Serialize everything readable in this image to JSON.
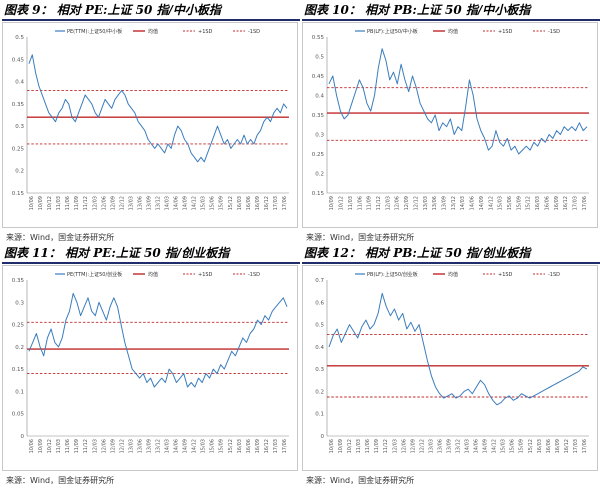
{
  "colors": {
    "series": "#3b7dbd",
    "mean": "#c0282a",
    "band": "#c0282a",
    "title_rule": "#1f2d6b"
  },
  "legend_labels": {
    "mean": "均值",
    "plus": "+1SD",
    "minus": "-1SD"
  },
  "panels": [
    {
      "title": "图表 9：  相对 PE:上证 50 指/中小板指",
      "source": "来源：Wind，国金证券研究所"
    },
    {
      "title": "图表 10：  相对 PB:上证 50 指/中小板指",
      "source": "来源：Wind，国金证券研究所"
    },
    {
      "title": "图表 11：  相对 PE:上证 50 指/创业板指",
      "source": "来源：Wind，国金证券研究所"
    },
    {
      "title": "图表 12：  相对 PB:上证 50 指/创业板指",
      "source": "来源：Wind，国金证券研究所"
    }
  ],
  "chart_data": [
    {
      "type": "line",
      "series_name": "PE(TTM):上证50/中小板",
      "ylim": [
        0.15,
        0.5
      ],
      "yticks": [
        "0.15",
        "0.2",
        "0.25",
        "0.3",
        "0.35",
        "0.4",
        "0.45",
        "0.5"
      ],
      "xticks": [
        "10/06",
        "10/09",
        "10/12",
        "11/03",
        "11/06",
        "11/09",
        "11/12",
        "12/03",
        "12/06",
        "12/09",
        "12/12",
        "13/03",
        "13/06",
        "13/09",
        "13/12",
        "14/03",
        "14/06",
        "14/09",
        "14/12",
        "15/03",
        "15/06",
        "15/09",
        "15/12",
        "16/03",
        "16/06",
        "16/09",
        "16/12",
        "17/03",
        "17/06"
      ],
      "mean": 0.32,
      "plus_sd": 0.38,
      "minus_sd": 0.26,
      "values": [
        0.44,
        0.46,
        0.42,
        0.39,
        0.37,
        0.35,
        0.33,
        0.32,
        0.31,
        0.33,
        0.34,
        0.36,
        0.35,
        0.32,
        0.31,
        0.33,
        0.35,
        0.37,
        0.36,
        0.35,
        0.33,
        0.32,
        0.34,
        0.36,
        0.35,
        0.34,
        0.36,
        0.37,
        0.38,
        0.37,
        0.35,
        0.34,
        0.33,
        0.31,
        0.3,
        0.29,
        0.27,
        0.26,
        0.25,
        0.26,
        0.25,
        0.24,
        0.26,
        0.25,
        0.28,
        0.3,
        0.29,
        0.27,
        0.26,
        0.24,
        0.23,
        0.22,
        0.23,
        0.22,
        0.24,
        0.26,
        0.28,
        0.3,
        0.28,
        0.26,
        0.27,
        0.25,
        0.26,
        0.27,
        0.26,
        0.28,
        0.26,
        0.27,
        0.26,
        0.28,
        0.29,
        0.31,
        0.32,
        0.31,
        0.33,
        0.34,
        0.33,
        0.35,
        0.34
      ]
    },
    {
      "type": "line",
      "series_name": "PB(LF):上证50/中小板",
      "ylim": [
        0.15,
        0.55
      ],
      "yticks": [
        "0.15",
        "0.2",
        "0.25",
        "0.3",
        "0.35",
        "0.4",
        "0.45",
        "0.5",
        "0.55"
      ],
      "xticks": [
        "10/09",
        "10/12",
        "11/03",
        "11/06",
        "11/09",
        "11/12",
        "12/03",
        "12/06",
        "12/09",
        "12/12",
        "13/03",
        "13/06",
        "13/09",
        "13/12",
        "14/03",
        "14/06",
        "14/09",
        "14/12",
        "15/03",
        "15/06",
        "15/09",
        "15/12",
        "16/03",
        "16/06",
        "16/09",
        "16/12",
        "17/03",
        "17/06"
      ],
      "mean": 0.355,
      "plus_sd": 0.42,
      "minus_sd": 0.285,
      "values": [
        0.43,
        0.45,
        0.4,
        0.36,
        0.34,
        0.35,
        0.38,
        0.41,
        0.44,
        0.42,
        0.38,
        0.36,
        0.4,
        0.47,
        0.52,
        0.49,
        0.44,
        0.46,
        0.43,
        0.48,
        0.44,
        0.41,
        0.45,
        0.42,
        0.38,
        0.36,
        0.34,
        0.33,
        0.35,
        0.31,
        0.33,
        0.32,
        0.34,
        0.3,
        0.32,
        0.31,
        0.37,
        0.44,
        0.4,
        0.34,
        0.31,
        0.29,
        0.26,
        0.27,
        0.31,
        0.28,
        0.27,
        0.29,
        0.26,
        0.27,
        0.25,
        0.26,
        0.27,
        0.26,
        0.28,
        0.27,
        0.29,
        0.28,
        0.3,
        0.29,
        0.31,
        0.3,
        0.32,
        0.31,
        0.32,
        0.31,
        0.33,
        0.31,
        0.32
      ]
    },
    {
      "type": "line",
      "series_name": "PE(TTM):上证50/创业板",
      "ylim": [
        0.0,
        0.35
      ],
      "yticks": [
        "0",
        "0.05",
        "0.1",
        "0.15",
        "0.2",
        "0.25",
        "0.3",
        "0.35"
      ],
      "xticks": [
        "10/06",
        "10/09",
        "10/12",
        "11/03",
        "11/06",
        "11/09",
        "11/12",
        "12/03",
        "12/06",
        "12/09",
        "12/12",
        "13/03",
        "13/06",
        "13/09",
        "13/12",
        "14/03",
        "14/06",
        "14/09",
        "14/12",
        "15/03",
        "15/06",
        "15/09",
        "15/12",
        "16/03",
        "16/06",
        "16/09",
        "16/12",
        "17/03",
        "17/06"
      ],
      "mean": 0.195,
      "plus_sd": 0.255,
      "minus_sd": 0.14,
      "values": [
        0.19,
        0.21,
        0.23,
        0.2,
        0.18,
        0.22,
        0.24,
        0.21,
        0.2,
        0.22,
        0.26,
        0.28,
        0.32,
        0.3,
        0.27,
        0.29,
        0.31,
        0.28,
        0.27,
        0.3,
        0.28,
        0.26,
        0.29,
        0.31,
        0.29,
        0.25,
        0.21,
        0.18,
        0.15,
        0.14,
        0.13,
        0.14,
        0.12,
        0.13,
        0.11,
        0.12,
        0.13,
        0.12,
        0.15,
        0.14,
        0.12,
        0.13,
        0.14,
        0.11,
        0.12,
        0.11,
        0.13,
        0.12,
        0.14,
        0.13,
        0.15,
        0.14,
        0.16,
        0.15,
        0.17,
        0.19,
        0.18,
        0.2,
        0.22,
        0.21,
        0.23,
        0.24,
        0.26,
        0.25,
        0.27,
        0.26,
        0.28,
        0.29,
        0.3,
        0.31,
        0.29
      ]
    },
    {
      "type": "line",
      "series_name": "PB(LF):上证50/创业板",
      "ylim": [
        0.0,
        0.7
      ],
      "yticks": [
        "0",
        "0.1",
        "0.2",
        "0.3",
        "0.4",
        "0.5",
        "0.6",
        "0.7"
      ],
      "xticks": [
        "10/06",
        "10/09",
        "10/12",
        "11/03",
        "11/06",
        "11/09",
        "11/12",
        "12/03",
        "12/06",
        "12/09",
        "12/12",
        "13/03",
        "13/06",
        "13/09",
        "13/12",
        "14/03",
        "14/06",
        "14/09",
        "14/12",
        "15/03",
        "15/06",
        "15/09",
        "15/12",
        "16/03",
        "16/06",
        "16/09",
        "16/12",
        "17/03",
        "17/06"
      ],
      "mean": 0.315,
      "plus_sd": 0.455,
      "minus_sd": 0.175,
      "values": [
        0.4,
        0.45,
        0.48,
        0.42,
        0.46,
        0.5,
        0.47,
        0.44,
        0.49,
        0.52,
        0.48,
        0.5,
        0.55,
        0.64,
        0.58,
        0.54,
        0.57,
        0.52,
        0.55,
        0.48,
        0.51,
        0.47,
        0.5,
        0.42,
        0.34,
        0.27,
        0.22,
        0.19,
        0.17,
        0.18,
        0.19,
        0.17,
        0.18,
        0.2,
        0.21,
        0.19,
        0.22,
        0.25,
        0.23,
        0.19,
        0.16,
        0.14,
        0.15,
        0.17,
        0.18,
        0.16,
        0.17,
        0.19,
        0.18,
        0.17,
        0.18,
        0.19,
        0.2,
        0.21,
        0.22,
        0.23,
        0.24,
        0.25,
        0.26,
        0.27,
        0.28,
        0.29,
        0.31,
        0.3
      ]
    }
  ]
}
